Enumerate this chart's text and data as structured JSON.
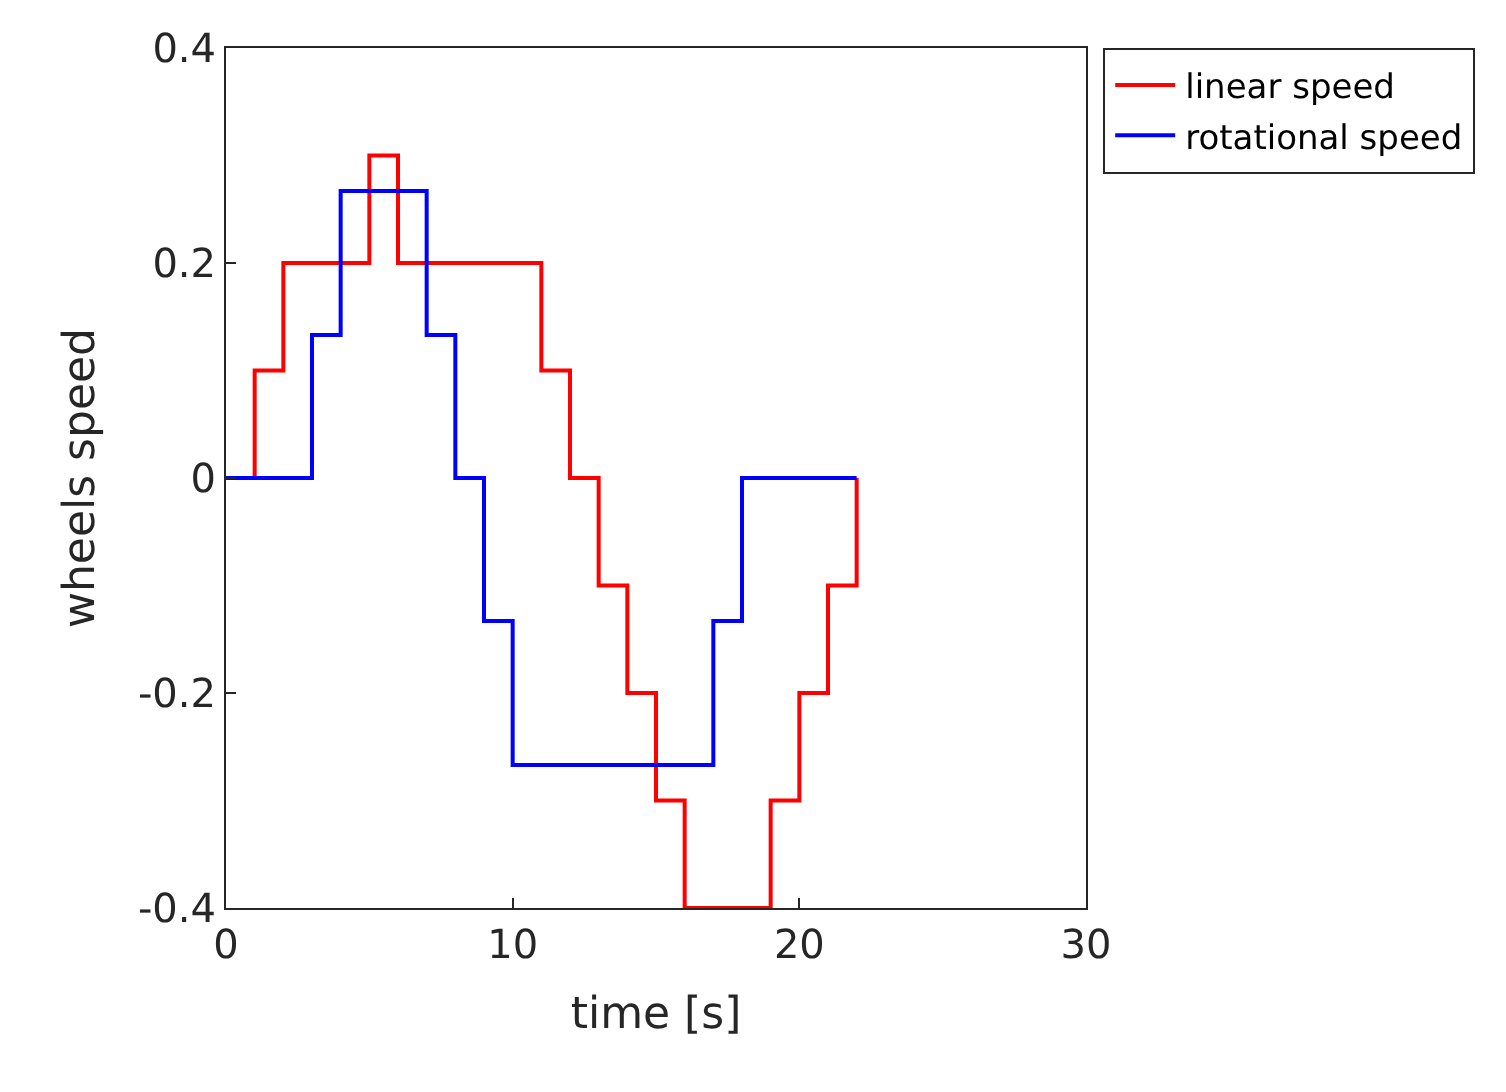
{
  "chart_data": {
    "type": "step",
    "xlabel": "time [s]",
    "ylabel": "wheels speed",
    "x": [
      0,
      1,
      2,
      3,
      4,
      5,
      6,
      7,
      8,
      9,
      10,
      11,
      12,
      13,
      14,
      15,
      16,
      17,
      18,
      19,
      20,
      21,
      22
    ],
    "series": [
      {
        "name": "linear speed",
        "color": "#ff0000",
        "values": [
          0,
          0.1,
          0.2,
          0.2,
          0.2,
          0.3,
          0.2,
          0.2,
          0.2,
          0.2,
          0.2,
          0.1,
          0,
          -0.1,
          -0.2,
          -0.3,
          -0.4,
          -0.4,
          -0.4,
          -0.3,
          -0.2,
          -0.1,
          0
        ]
      },
      {
        "name": "rotational speed",
        "color": "#0000ff",
        "values": [
          0,
          0,
          0,
          0.133,
          0.267,
          0.267,
          0.267,
          0.133,
          0,
          -0.133,
          -0.267,
          -0.267,
          -0.267,
          -0.267,
          -0.267,
          -0.267,
          -0.267,
          -0.133,
          0,
          0,
          0,
          0,
          0
        ]
      }
    ],
    "xlim": [
      0,
      30
    ],
    "xticks": [
      0,
      10,
      20,
      30
    ],
    "ylim": [
      -0.4,
      0.4
    ],
    "yticks": [
      -0.4,
      -0.2,
      0,
      0.2,
      0.4
    ],
    "legend": "top right",
    "marker": "none",
    "line_style": "solid"
  }
}
